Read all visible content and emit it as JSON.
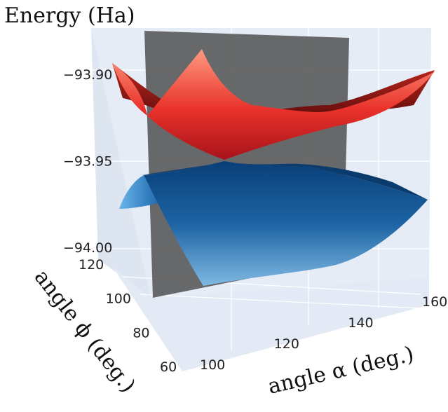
{
  "chart_data": {
    "type": "surface3d",
    "title": "Energy (Ha)",
    "axes": {
      "x": {
        "label": "angle α (deg.)",
        "ticks": [
          100,
          120,
          140,
          160
        ],
        "range": [
          90,
          160
        ]
      },
      "y": {
        "label": "angle ϕ (deg.)",
        "ticks": [
          60,
          80,
          100,
          120
        ],
        "range": [
          60,
          120
        ]
      },
      "z": {
        "label": "Energy (Ha)",
        "ticks": [
          "−93.90",
          "−93.95",
          "−94.00"
        ],
        "range": [
          -94.01,
          -93.87
        ]
      }
    },
    "grid": true,
    "surfaces": [
      {
        "id": "upper",
        "color_top": "#ff9a80",
        "color_bottom": "#b01515",
        "approx_range": [
          -93.95,
          -93.88
        ]
      },
      {
        "id": "lower",
        "color_top": "#5aa6d9",
        "color_bottom": "#083b6e",
        "approx_range": [
          -93.99,
          -93.95
        ]
      }
    ],
    "cut_plane": {
      "color": "#4d4d4d",
      "opacity": 0.85
    }
  }
}
